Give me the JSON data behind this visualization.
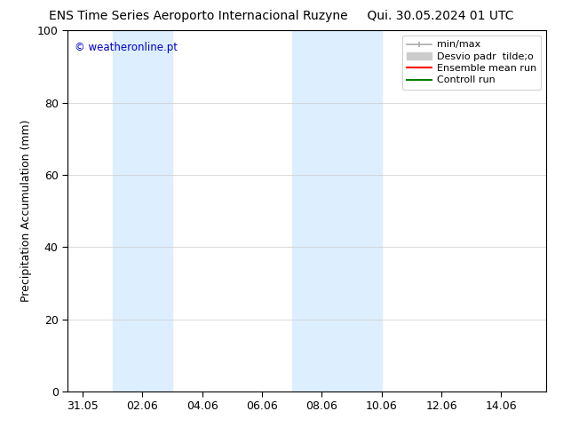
{
  "title_left": "ENS Time Series Aeroporto Internacional Ruzyne",
  "title_right": "Qui. 30.05.2024 01 UTC",
  "ylabel": "Precipitation Accumulation (mm)",
  "ylim": [
    0,
    100
  ],
  "yticks": [
    0,
    20,
    40,
    60,
    80,
    100
  ],
  "watermark": "© weatheronline.pt",
  "watermark_color": "#0000cc",
  "bg_color": "#ffffff",
  "shaded_regions": [
    {
      "xstart": 1.0,
      "xend": 3.0,
      "color": "#ddeeff"
    },
    {
      "xstart": 7.0,
      "xend": 8.0,
      "color": "#ddeeff"
    },
    {
      "xstart": 8.0,
      "xend": 10.0,
      "color": "#ddeeff"
    }
  ],
  "x_tick_labels": [
    "31.05",
    "02.06",
    "04.06",
    "06.06",
    "08.06",
    "10.06",
    "12.06",
    "14.06"
  ],
  "x_tick_positions": [
    0,
    2,
    4,
    6,
    8,
    10,
    12,
    14
  ],
  "xlim": [
    -0.5,
    15.5
  ],
  "legend_entries": [
    {
      "label": "min/max",
      "color": "#aaaaaa",
      "lw": 1.2
    },
    {
      "label": "Desvio padr  tilde;o",
      "color": "#cccccc",
      "lw": 7
    },
    {
      "label": "Ensemble mean run",
      "color": "#ff0000",
      "lw": 1.5
    },
    {
      "label": "Controll run",
      "color": "#008000",
      "lw": 1.5
    }
  ],
  "grid_color": "#cccccc",
  "grid_lw": 0.5,
  "spine_color": "#000000",
  "title_fontsize": 10,
  "label_fontsize": 9,
  "tick_fontsize": 9,
  "legend_fontsize": 8
}
